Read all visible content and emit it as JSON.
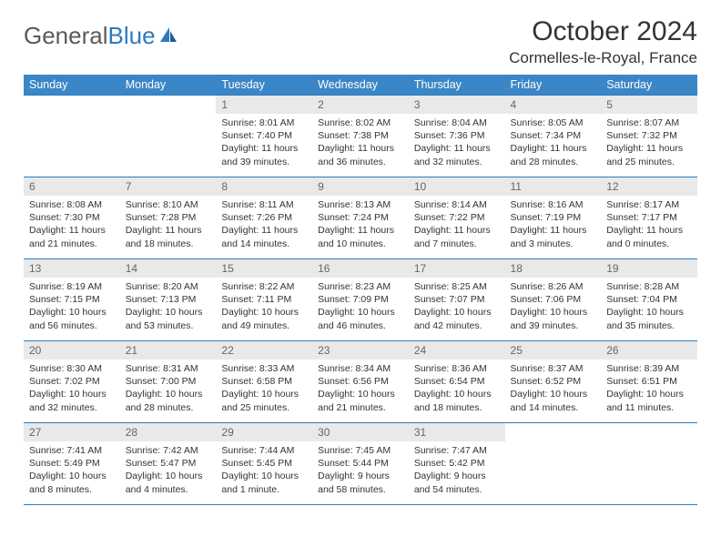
{
  "brand": {
    "part1": "General",
    "part2": "Blue"
  },
  "title": "October 2024",
  "location": "Cormelles-le-Royal, France",
  "colors": {
    "header_bg": "#3b86c6",
    "header_text": "#ffffff",
    "rule": "#2b7bbf",
    "daynum_bg": "#e9e9e9",
    "daynum_text": "#666666",
    "body_text": "#333333",
    "logo_gray": "#5a5a5a",
    "logo_blue": "#2b7bbf"
  },
  "weekdays": [
    "Sunday",
    "Monday",
    "Tuesday",
    "Wednesday",
    "Thursday",
    "Friday",
    "Saturday"
  ],
  "weeks": [
    [
      {
        "n": "",
        "sunrise": "",
        "sunset": "",
        "daylight": ""
      },
      {
        "n": "",
        "sunrise": "",
        "sunset": "",
        "daylight": ""
      },
      {
        "n": "1",
        "sunrise": "Sunrise: 8:01 AM",
        "sunset": "Sunset: 7:40 PM",
        "daylight": "Daylight: 11 hours and 39 minutes."
      },
      {
        "n": "2",
        "sunrise": "Sunrise: 8:02 AM",
        "sunset": "Sunset: 7:38 PM",
        "daylight": "Daylight: 11 hours and 36 minutes."
      },
      {
        "n": "3",
        "sunrise": "Sunrise: 8:04 AM",
        "sunset": "Sunset: 7:36 PM",
        "daylight": "Daylight: 11 hours and 32 minutes."
      },
      {
        "n": "4",
        "sunrise": "Sunrise: 8:05 AM",
        "sunset": "Sunset: 7:34 PM",
        "daylight": "Daylight: 11 hours and 28 minutes."
      },
      {
        "n": "5",
        "sunrise": "Sunrise: 8:07 AM",
        "sunset": "Sunset: 7:32 PM",
        "daylight": "Daylight: 11 hours and 25 minutes."
      }
    ],
    [
      {
        "n": "6",
        "sunrise": "Sunrise: 8:08 AM",
        "sunset": "Sunset: 7:30 PM",
        "daylight": "Daylight: 11 hours and 21 minutes."
      },
      {
        "n": "7",
        "sunrise": "Sunrise: 8:10 AM",
        "sunset": "Sunset: 7:28 PM",
        "daylight": "Daylight: 11 hours and 18 minutes."
      },
      {
        "n": "8",
        "sunrise": "Sunrise: 8:11 AM",
        "sunset": "Sunset: 7:26 PM",
        "daylight": "Daylight: 11 hours and 14 minutes."
      },
      {
        "n": "9",
        "sunrise": "Sunrise: 8:13 AM",
        "sunset": "Sunset: 7:24 PM",
        "daylight": "Daylight: 11 hours and 10 minutes."
      },
      {
        "n": "10",
        "sunrise": "Sunrise: 8:14 AM",
        "sunset": "Sunset: 7:22 PM",
        "daylight": "Daylight: 11 hours and 7 minutes."
      },
      {
        "n": "11",
        "sunrise": "Sunrise: 8:16 AM",
        "sunset": "Sunset: 7:19 PM",
        "daylight": "Daylight: 11 hours and 3 minutes."
      },
      {
        "n": "12",
        "sunrise": "Sunrise: 8:17 AM",
        "sunset": "Sunset: 7:17 PM",
        "daylight": "Daylight: 11 hours and 0 minutes."
      }
    ],
    [
      {
        "n": "13",
        "sunrise": "Sunrise: 8:19 AM",
        "sunset": "Sunset: 7:15 PM",
        "daylight": "Daylight: 10 hours and 56 minutes."
      },
      {
        "n": "14",
        "sunrise": "Sunrise: 8:20 AM",
        "sunset": "Sunset: 7:13 PM",
        "daylight": "Daylight: 10 hours and 53 minutes."
      },
      {
        "n": "15",
        "sunrise": "Sunrise: 8:22 AM",
        "sunset": "Sunset: 7:11 PM",
        "daylight": "Daylight: 10 hours and 49 minutes."
      },
      {
        "n": "16",
        "sunrise": "Sunrise: 8:23 AM",
        "sunset": "Sunset: 7:09 PM",
        "daylight": "Daylight: 10 hours and 46 minutes."
      },
      {
        "n": "17",
        "sunrise": "Sunrise: 8:25 AM",
        "sunset": "Sunset: 7:07 PM",
        "daylight": "Daylight: 10 hours and 42 minutes."
      },
      {
        "n": "18",
        "sunrise": "Sunrise: 8:26 AM",
        "sunset": "Sunset: 7:06 PM",
        "daylight": "Daylight: 10 hours and 39 minutes."
      },
      {
        "n": "19",
        "sunrise": "Sunrise: 8:28 AM",
        "sunset": "Sunset: 7:04 PM",
        "daylight": "Daylight: 10 hours and 35 minutes."
      }
    ],
    [
      {
        "n": "20",
        "sunrise": "Sunrise: 8:30 AM",
        "sunset": "Sunset: 7:02 PM",
        "daylight": "Daylight: 10 hours and 32 minutes."
      },
      {
        "n": "21",
        "sunrise": "Sunrise: 8:31 AM",
        "sunset": "Sunset: 7:00 PM",
        "daylight": "Daylight: 10 hours and 28 minutes."
      },
      {
        "n": "22",
        "sunrise": "Sunrise: 8:33 AM",
        "sunset": "Sunset: 6:58 PM",
        "daylight": "Daylight: 10 hours and 25 minutes."
      },
      {
        "n": "23",
        "sunrise": "Sunrise: 8:34 AM",
        "sunset": "Sunset: 6:56 PM",
        "daylight": "Daylight: 10 hours and 21 minutes."
      },
      {
        "n": "24",
        "sunrise": "Sunrise: 8:36 AM",
        "sunset": "Sunset: 6:54 PM",
        "daylight": "Daylight: 10 hours and 18 minutes."
      },
      {
        "n": "25",
        "sunrise": "Sunrise: 8:37 AM",
        "sunset": "Sunset: 6:52 PM",
        "daylight": "Daylight: 10 hours and 14 minutes."
      },
      {
        "n": "26",
        "sunrise": "Sunrise: 8:39 AM",
        "sunset": "Sunset: 6:51 PM",
        "daylight": "Daylight: 10 hours and 11 minutes."
      }
    ],
    [
      {
        "n": "27",
        "sunrise": "Sunrise: 7:41 AM",
        "sunset": "Sunset: 5:49 PM",
        "daylight": "Daylight: 10 hours and 8 minutes."
      },
      {
        "n": "28",
        "sunrise": "Sunrise: 7:42 AM",
        "sunset": "Sunset: 5:47 PM",
        "daylight": "Daylight: 10 hours and 4 minutes."
      },
      {
        "n": "29",
        "sunrise": "Sunrise: 7:44 AM",
        "sunset": "Sunset: 5:45 PM",
        "daylight": "Daylight: 10 hours and 1 minute."
      },
      {
        "n": "30",
        "sunrise": "Sunrise: 7:45 AM",
        "sunset": "Sunset: 5:44 PM",
        "daylight": "Daylight: 9 hours and 58 minutes."
      },
      {
        "n": "31",
        "sunrise": "Sunrise: 7:47 AM",
        "sunset": "Sunset: 5:42 PM",
        "daylight": "Daylight: 9 hours and 54 minutes."
      },
      {
        "n": "",
        "sunrise": "",
        "sunset": "",
        "daylight": ""
      },
      {
        "n": "",
        "sunrise": "",
        "sunset": "",
        "daylight": ""
      }
    ]
  ]
}
